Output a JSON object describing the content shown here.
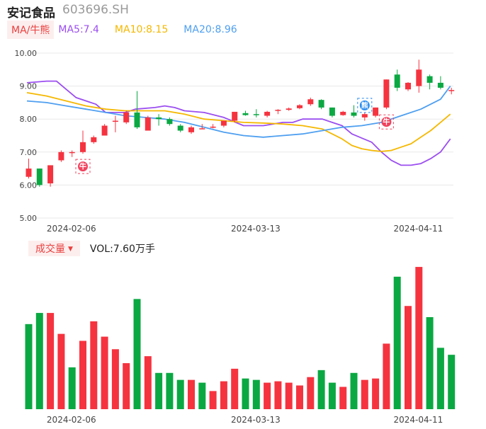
{
  "header": {
    "stock_name": "安记食品",
    "stock_code": "603696.SH"
  },
  "ma_legend": {
    "tab_label": "MA/牛熊",
    "items": [
      {
        "label": "MA5:7.4",
        "color": "#9b4ef0"
      },
      {
        "label": "MA10:8.15",
        "color": "#f5b800"
      },
      {
        "label": "MA20:8.96",
        "color": "#4e9ff0"
      }
    ]
  },
  "volume_legend": {
    "tab_label": "成交量",
    "vol_text": "VOL:7.60万手"
  },
  "colors": {
    "up": "#f5333f",
    "down": "#0aa842",
    "grid": "#e8e8e8",
    "bull_badge": "#f0435e",
    "bear_badge": "#2a8cf0"
  },
  "badges": [
    {
      "index": 5,
      "text": "牛",
      "type": "bull"
    },
    {
      "index": 31,
      "text": "熊",
      "type": "bear"
    },
    {
      "index": 33,
      "text": "牛",
      "type": "bull"
    }
  ],
  "chart_data": {
    "type": "candlestick",
    "price_axis": {
      "min": 5.0,
      "max": 10.0,
      "ticks": [
        "10.00",
        "9.00",
        "8.00",
        "7.00",
        "6.00",
        "5.00"
      ],
      "tick_values": [
        10,
        9,
        8,
        7,
        6,
        5
      ]
    },
    "x_tick_labels": [
      {
        "index": 1,
        "label": "2024-02-06"
      },
      {
        "index": 18,
        "label": "2024-03-13"
      },
      {
        "index": 33,
        "label": "2024-04-11"
      }
    ],
    "candles": [
      {
        "o": 6.25,
        "c": 6.5,
        "h": 6.8,
        "l": 6.2
      },
      {
        "o": 6.5,
        "c": 6.0,
        "h": 6.5,
        "l": 5.95
      },
      {
        "o": 6.05,
        "c": 6.6,
        "h": 6.6,
        "l": 5.95
      },
      {
        "o": 6.75,
        "c": 7.0,
        "h": 7.05,
        "l": 6.7
      },
      {
        "o": 6.97,
        "c": 7.0,
        "h": 7.05,
        "l": 6.85
      },
      {
        "o": 7.0,
        "c": 7.3,
        "h": 7.65,
        "l": 6.95
      },
      {
        "o": 7.3,
        "c": 7.45,
        "h": 7.5,
        "l": 7.25
      },
      {
        "o": 7.5,
        "c": 7.8,
        "h": 7.85,
        "l": 7.5
      },
      {
        "o": 7.93,
        "c": 7.95,
        "h": 8.1,
        "l": 7.6
      },
      {
        "o": 7.9,
        "c": 8.2,
        "h": 8.25,
        "l": 7.85
      },
      {
        "o": 8.2,
        "c": 7.75,
        "h": 8.85,
        "l": 7.7
      },
      {
        "o": 7.65,
        "c": 8.05,
        "h": 8.1,
        "l": 7.65
      },
      {
        "o": 8.05,
        "c": 8.0,
        "h": 8.15,
        "l": 7.8
      },
      {
        "o": 8.0,
        "c": 7.85,
        "h": 8.05,
        "l": 7.8
      },
      {
        "o": 7.8,
        "c": 7.65,
        "h": 7.85,
        "l": 7.6
      },
      {
        "o": 7.6,
        "c": 7.75,
        "h": 7.8,
        "l": 7.55
      },
      {
        "o": 7.7,
        "c": 7.72,
        "h": 7.85,
        "l": 7.7
      },
      {
        "o": 7.75,
        "c": 7.77,
        "h": 7.85,
        "l": 7.72
      },
      {
        "o": 7.8,
        "c": 7.95,
        "h": 7.95,
        "l": 7.75
      },
      {
        "o": 7.95,
        "c": 8.22,
        "h": 8.22,
        "l": 7.9
      },
      {
        "o": 8.18,
        "c": 8.12,
        "h": 8.25,
        "l": 8.1
      },
      {
        "o": 8.15,
        "c": 8.12,
        "h": 8.3,
        "l": 8.05
      },
      {
        "o": 8.1,
        "c": 8.22,
        "h": 8.25,
        "l": 8.05
      },
      {
        "o": 8.25,
        "c": 8.28,
        "h": 8.3,
        "l": 8.15
      },
      {
        "o": 8.28,
        "c": 8.32,
        "h": 8.35,
        "l": 8.25
      },
      {
        "o": 8.33,
        "c": 8.42,
        "h": 8.45,
        "l": 8.3
      },
      {
        "o": 8.45,
        "c": 8.6,
        "h": 8.65,
        "l": 8.4
      },
      {
        "o": 8.58,
        "c": 8.35,
        "h": 8.6,
        "l": 8.3
      },
      {
        "o": 8.35,
        "c": 8.1,
        "h": 8.35,
        "l": 8.05
      },
      {
        "o": 8.12,
        "c": 8.22,
        "h": 8.25,
        "l": 8.1
      },
      {
        "o": 8.2,
        "c": 8.1,
        "h": 8.42,
        "l": 8.05
      },
      {
        "o": 8.05,
        "c": 8.15,
        "h": 8.2,
        "l": 7.95
      },
      {
        "o": 8.1,
        "c": 8.35,
        "h": 8.35,
        "l": 8.05
      },
      {
        "o": 8.35,
        "c": 9.2,
        "h": 9.2,
        "l": 8.3
      },
      {
        "o": 9.35,
        "c": 8.95,
        "h": 9.5,
        "l": 8.85
      },
      {
        "o": 8.9,
        "c": 9.1,
        "h": 9.12,
        "l": 8.85
      },
      {
        "o": 9.0,
        "c": 9.5,
        "h": 9.8,
        "l": 8.8
      },
      {
        "o": 9.3,
        "c": 9.1,
        "h": 9.35,
        "l": 8.9
      },
      {
        "o": 9.1,
        "c": 8.95,
        "h": 9.3,
        "l": 8.9
      },
      {
        "o": 8.85,
        "c": 8.88,
        "h": 8.95,
        "l": 8.75
      }
    ],
    "ma_series": [
      {
        "name": "MA5",
        "color": "#9b4ef0",
        "points": [
          [
            0,
            9.1
          ],
          [
            2,
            9.15
          ],
          [
            3,
            9.15
          ],
          [
            4,
            8.9
          ],
          [
            5,
            8.65
          ],
          [
            7,
            8.45
          ],
          [
            8,
            8.2
          ],
          [
            10,
            8.2
          ],
          [
            11,
            8.3
          ],
          [
            13,
            8.35
          ],
          [
            14,
            8.4
          ],
          [
            15,
            8.35
          ],
          [
            16,
            8.25
          ],
          [
            18,
            8.2
          ],
          [
            20,
            8.05
          ],
          [
            22,
            7.8
          ],
          [
            24,
            7.8
          ],
          [
            26,
            7.9
          ],
          [
            27,
            7.9
          ],
          [
            28,
            8.0
          ],
          [
            30,
            8.0
          ],
          [
            31,
            7.9
          ],
          [
            32,
            7.8
          ],
          [
            33,
            7.55
          ],
          [
            35,
            7.3
          ],
          [
            36,
            7.0
          ],
          [
            37,
            6.75
          ],
          [
            38,
            6.6
          ],
          [
            39,
            6.6
          ],
          [
            40,
            6.65
          ],
          [
            41,
            6.8
          ],
          [
            42,
            7.0
          ],
          [
            43,
            7.4
          ]
        ]
      },
      {
        "name": "MA10",
        "color": "#f5b800",
        "points": [
          [
            0,
            8.8
          ],
          [
            2,
            8.7
          ],
          [
            4,
            8.55
          ],
          [
            6,
            8.4
          ],
          [
            8,
            8.3
          ],
          [
            10,
            8.25
          ],
          [
            12,
            8.25
          ],
          [
            14,
            8.25
          ],
          [
            16,
            8.15
          ],
          [
            18,
            8.0
          ],
          [
            20,
            7.95
          ],
          [
            22,
            7.9
          ],
          [
            24,
            7.88
          ],
          [
            26,
            7.85
          ],
          [
            28,
            7.8
          ],
          [
            30,
            7.7
          ],
          [
            31,
            7.55
          ],
          [
            32,
            7.4
          ],
          [
            33,
            7.2
          ],
          [
            34,
            7.1
          ],
          [
            35,
            7.05
          ],
          [
            36,
            7.02
          ],
          [
            37,
            7.05
          ],
          [
            38,
            7.15
          ],
          [
            39,
            7.25
          ],
          [
            40,
            7.45
          ],
          [
            41,
            7.65
          ],
          [
            42,
            7.9
          ],
          [
            43,
            8.15
          ]
        ]
      },
      {
        "name": "MA20",
        "color": "#4e9ff0",
        "points": [
          [
            0,
            8.55
          ],
          [
            2,
            8.5
          ],
          [
            4,
            8.4
          ],
          [
            6,
            8.3
          ],
          [
            8,
            8.2
          ],
          [
            10,
            8.1
          ],
          [
            12,
            8.05
          ],
          [
            14,
            8.0
          ],
          [
            16,
            7.9
          ],
          [
            18,
            7.75
          ],
          [
            20,
            7.6
          ],
          [
            22,
            7.5
          ],
          [
            24,
            7.45
          ],
          [
            26,
            7.5
          ],
          [
            28,
            7.55
          ],
          [
            30,
            7.65
          ],
          [
            32,
            7.75
          ],
          [
            34,
            7.8
          ],
          [
            36,
            7.9
          ],
          [
            38,
            8.1
          ],
          [
            40,
            8.3
          ],
          [
            42,
            8.6
          ],
          [
            43,
            9.0
          ]
        ]
      }
    ],
    "volume": {
      "max": 100,
      "values": [
        {
          "v": 61,
          "up": false
        },
        {
          "v": 69,
          "up": false
        },
        {
          "v": 69,
          "up": true
        },
        {
          "v": 54,
          "up": true
        },
        {
          "v": 30,
          "up": false
        },
        {
          "v": 49,
          "up": true
        },
        {
          "v": 63,
          "up": true
        },
        {
          "v": 52,
          "up": true
        },
        {
          "v": 43,
          "up": true
        },
        {
          "v": 33,
          "up": true
        },
        {
          "v": 79,
          "up": false
        },
        {
          "v": 38,
          "up": true
        },
        {
          "v": 26,
          "up": false
        },
        {
          "v": 26,
          "up": false
        },
        {
          "v": 21,
          "up": false
        },
        {
          "v": 21,
          "up": true
        },
        {
          "v": 19,
          "up": false
        },
        {
          "v": 13,
          "up": true
        },
        {
          "v": 20,
          "up": true
        },
        {
          "v": 29,
          "up": true
        },
        {
          "v": 22,
          "up": false
        },
        {
          "v": 21,
          "up": false
        },
        {
          "v": 19,
          "up": true
        },
        {
          "v": 20,
          "up": true
        },
        {
          "v": 19,
          "up": true
        },
        {
          "v": 17,
          "up": true
        },
        {
          "v": 23,
          "up": true
        },
        {
          "v": 28,
          "up": false
        },
        {
          "v": 19,
          "up": false
        },
        {
          "v": 16,
          "up": true
        },
        {
          "v": 26,
          "up": false
        },
        {
          "v": 21,
          "up": true
        },
        {
          "v": 22,
          "up": true
        },
        {
          "v": 47,
          "up": true
        },
        {
          "v": 95,
          "up": false
        },
        {
          "v": 74,
          "up": true
        },
        {
          "v": 102,
          "up": true
        },
        {
          "v": 66,
          "up": false
        },
        {
          "v": 44,
          "up": false
        },
        {
          "v": 39,
          "up": false
        }
      ]
    }
  }
}
